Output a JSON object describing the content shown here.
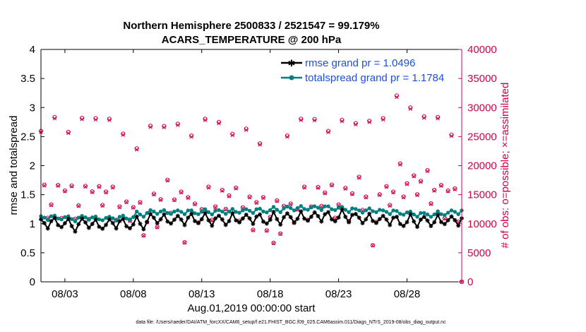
{
  "chart_data": {
    "type": "line",
    "title_line1": "Northern Hemisphere 2500833 / 2521547 = 99.179%",
    "title_line2": "ACARS_TEMPERATURE @ 200 hPa",
    "xlabel": "Aug.01,2019 00:00:00 start",
    "ylabel_left": "rmse and totalspread",
    "ylabel_right": "# of obs: o=possible; ×=assimilated",
    "footnote": "data file: /Users/raeder/DAI/ATM_forcXX/CAM6_setup/f.e21.FHIST_BGC.f09_025.CAM6assim.011/Diags_NTrS_2019-08/obs_diag_output.nc",
    "xlim": [
      1.25,
      32.0
    ],
    "ylim_left": [
      0,
      4
    ],
    "ylim_right": [
      0,
      40000
    ],
    "x_ticks": [
      3,
      8,
      13,
      18,
      23,
      28
    ],
    "x_tick_labels": [
      "08/03",
      "08/08",
      "08/13",
      "08/18",
      "08/23",
      "08/28"
    ],
    "y_ticks_left": [
      0,
      0.5,
      1,
      1.5,
      2,
      2.5,
      3,
      3.5,
      4
    ],
    "y_tick_labels_left": [
      "0",
      "0.5",
      "1",
      "1.5",
      "2",
      "2.5",
      "3",
      "3.5",
      "4"
    ],
    "y_ticks_right": [
      0,
      5000,
      10000,
      15000,
      20000,
      25000,
      30000,
      35000,
      40000
    ],
    "y_tick_labels_right": [
      "0",
      "5000",
      "10000",
      "15000",
      "20000",
      "25000",
      "30000",
      "35000",
      "40000"
    ],
    "legend": [
      {
        "name": "rmse grand pr = 1.0496",
        "color": "#000000",
        "marker": "star"
      },
      {
        "name": "totalspread grand pr = 1.1784",
        "color": "#008080",
        "marker": "circle"
      }
    ],
    "colors": {
      "rmse": "#000000",
      "spread": "#008080",
      "obs": "#d0004a",
      "legend_text": "#1f4fd8"
    },
    "sampling": "6-hourly, starting 08/01 00Z",
    "rmse_daily_cycle": [
      1.1,
      1.0,
      0.93,
      1.02
    ],
    "spread_daily_cycle": [
      1.14,
      1.1,
      1.07,
      1.12
    ],
    "rmse_daily_offset": [
      0.0,
      0.0,
      -0.04,
      0.0,
      -0.04,
      0.0,
      -0.02,
      0.0,
      0.08,
      0.05,
      0.06,
      0.07,
      0.06,
      0.05,
      0.07,
      0.08,
      0.06,
      0.08,
      0.09,
      0.1,
      0.12,
      0.1,
      0.12,
      0.08,
      0.06,
      0.06,
      0.02,
      0.04,
      0.03,
      0.04,
      0.05
    ],
    "spread_daily_offset": [
      0.0,
      0.0,
      -0.02,
      0.0,
      -0.02,
      -0.01,
      0.0,
      0.06,
      0.1,
      0.09,
      0.1,
      0.09,
      0.1,
      0.1,
      0.11,
      0.12,
      0.12,
      0.14,
      0.16,
      0.16,
      0.17,
      0.16,
      0.14,
      0.12,
      0.12,
      0.1,
      0.08,
      0.06,
      0.05,
      0.07,
      0.1
    ],
    "obs_possible_daily_cycle": [
      27000,
      16000,
      11000,
      14000
    ],
    "obs_possible_daily_offset": [
      0,
      1000,
      -500,
      500,
      1500,
      0,
      -1500,
      -3000,
      -500,
      500,
      -500,
      -1500,
      0,
      500,
      -500,
      -1000,
      -2500,
      -2000,
      -1500,
      0,
      1000,
      0,
      500,
      1000,
      0,
      1500,
      4000,
      3000,
      2500,
      1000,
      -1000
    ],
    "obs_possible_overrides": [
      {
        "x": 11.75,
        "y": 6800
      },
      {
        "x": 18.25,
        "y": 6700
      },
      {
        "x": 25.5,
        "y": 6300
      },
      {
        "x": 32.0,
        "y": 0
      }
    ],
    "obs_assimilated_ratio": 0.992
  }
}
